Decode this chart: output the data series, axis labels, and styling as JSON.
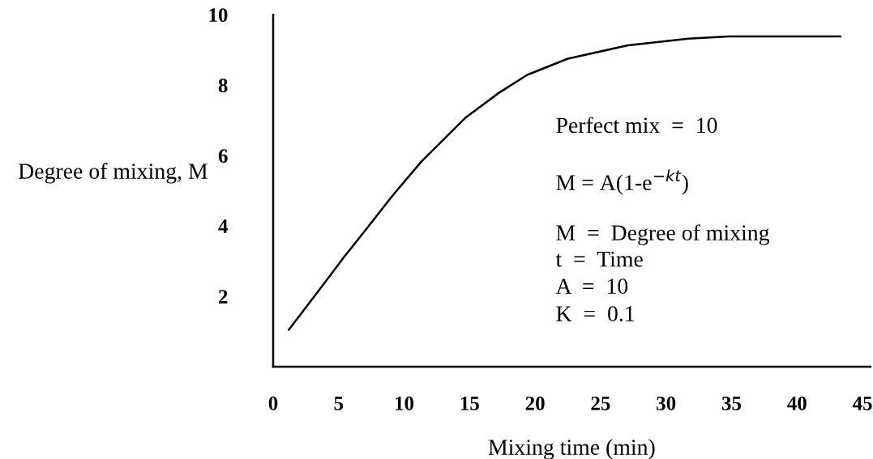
{
  "chart_data": {
    "type": "line",
    "xlabel": "Mixing time (min)",
    "ylabel": "Degree of mixing, M",
    "x": [
      1.2,
      3.9,
      5.4,
      7.0,
      9.2,
      11.3,
      14.7,
      17.2,
      19.4,
      22.5,
      27.1,
      31.7,
      34.8,
      43.3
    ],
    "series": [
      {
        "color": "#000000",
        "values": [
          1.05,
          2.37,
          3.11,
          3.86,
          4.9,
          5.82,
          7.08,
          7.77,
          8.29,
          8.75,
          9.13,
          9.32,
          9.38,
          9.38
        ]
      }
    ],
    "xlim": [
      0,
      45.6
    ],
    "xticks": [
      0,
      5,
      10,
      15,
      20,
      25,
      30,
      35,
      40,
      45
    ],
    "ylim": [
      0,
      10
    ],
    "yticks": [
      2,
      4,
      6,
      8,
      10
    ],
    "grid": false,
    "legend": false,
    "marker": "none",
    "line_style": "solid",
    "annotations": [
      "Perfect mix  =  10",
      "M = A(1-e$^{−kt}$)",
      "M  =  Degree of mixing",
      "t  =  Time",
      "A  =  10",
      "K  =  0.1"
    ]
  }
}
